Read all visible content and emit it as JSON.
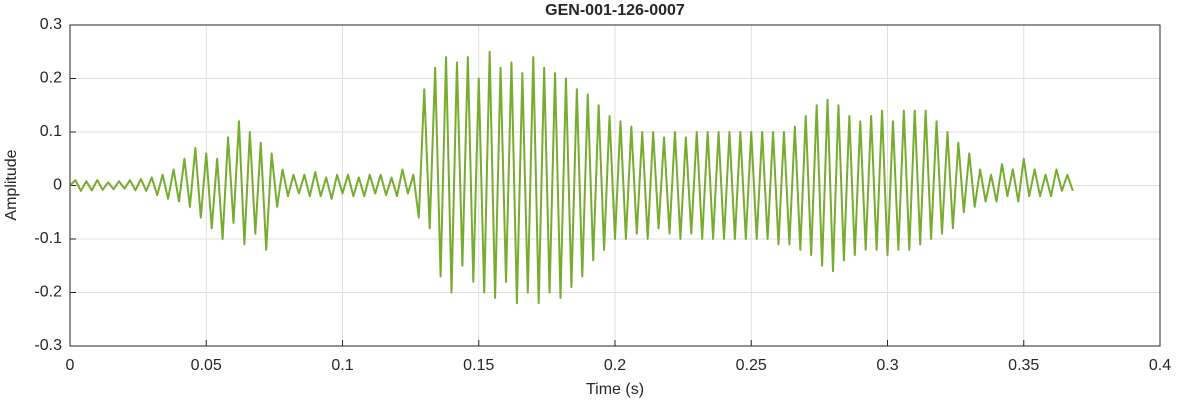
{
  "chart_data": {
    "type": "line",
    "title": "GEN-001-126-0007",
    "x_label": "Time (s)",
    "y_label": "Amplitude",
    "xlim": [
      0,
      0.4
    ],
    "ylim": [
      -0.3,
      0.3
    ],
    "xticks": [
      0,
      0.05,
      0.1,
      0.15,
      0.2,
      0.25,
      0.3,
      0.35,
      0.4
    ],
    "yticks": [
      -0.3,
      -0.2,
      -0.1,
      0,
      0.1,
      0.2,
      0.3
    ],
    "grid": true,
    "x": [
      0,
      0.002,
      0.004,
      0.006,
      0.008,
      0.01,
      0.012,
      0.014,
      0.016,
      0.018,
      0.02,
      0.022,
      0.024,
      0.026,
      0.028,
      0.03,
      0.032,
      0.034,
      0.036,
      0.038,
      0.04,
      0.042,
      0.044,
      0.046,
      0.048,
      0.05,
      0.052,
      0.054,
      0.056,
      0.058,
      0.06,
      0.062,
      0.064,
      0.066,
      0.068,
      0.07,
      0.072,
      0.074,
      0.076,
      0.078,
      0.08,
      0.082,
      0.084,
      0.086,
      0.088,
      0.09,
      0.092,
      0.094,
      0.096,
      0.098,
      0.1,
      0.102,
      0.104,
      0.106,
      0.108,
      0.11,
      0.112,
      0.114,
      0.116,
      0.118,
      0.12,
      0.122,
      0.124,
      0.126,
      0.128,
      0.13,
      0.132,
      0.134,
      0.136,
      0.138,
      0.14,
      0.142,
      0.144,
      0.146,
      0.148,
      0.15,
      0.152,
      0.154,
      0.156,
      0.158,
      0.16,
      0.162,
      0.164,
      0.166,
      0.168,
      0.17,
      0.172,
      0.174,
      0.176,
      0.178,
      0.18,
      0.182,
      0.184,
      0.186,
      0.188,
      0.19,
      0.192,
      0.194,
      0.196,
      0.198,
      0.2,
      0.202,
      0.204,
      0.206,
      0.208,
      0.21,
      0.212,
      0.214,
      0.216,
      0.218,
      0.22,
      0.222,
      0.224,
      0.226,
      0.228,
      0.23,
      0.232,
      0.234,
      0.236,
      0.238,
      0.24,
      0.242,
      0.244,
      0.246,
      0.248,
      0.25,
      0.252,
      0.254,
      0.256,
      0.258,
      0.26,
      0.262,
      0.264,
      0.266,
      0.268,
      0.27,
      0.272,
      0.274,
      0.276,
      0.278,
      0.28,
      0.282,
      0.284,
      0.286,
      0.288,
      0.29,
      0.292,
      0.294,
      0.296,
      0.298,
      0.3,
      0.302,
      0.304,
      0.306,
      0.308,
      0.31,
      0.312,
      0.314,
      0.316,
      0.318,
      0.32,
      0.322,
      0.324,
      0.326,
      0.328,
      0.33,
      0.332,
      0.334,
      0.336,
      0.338,
      0.34,
      0.342,
      0.344,
      0.346,
      0.348,
      0.35,
      0.352,
      0.354,
      0.356,
      0.358,
      0.36,
      0.362,
      0.364,
      0.366,
      0.368
    ],
    "series": [
      {
        "color": "#77ac30",
        "values": [
          0,
          0.01,
          -0.01,
          0.008,
          -0.009,
          0.01,
          -0.008,
          0.006,
          -0.007,
          0.008,
          -0.006,
          0.01,
          -0.009,
          0.012,
          -0.01,
          0.015,
          -0.018,
          0.02,
          -0.025,
          0.03,
          -0.03,
          0.05,
          -0.04,
          0.07,
          -0.06,
          0.06,
          -0.08,
          0.05,
          -0.1,
          0.09,
          -0.07,
          0.12,
          -0.11,
          0.1,
          -0.09,
          0.08,
          -0.12,
          0.06,
          -0.04,
          0.03,
          -0.02,
          0.02,
          -0.015,
          0.02,
          -0.02,
          0.025,
          -0.02,
          0.015,
          -0.025,
          0.02,
          -0.015,
          0.02,
          -0.02,
          0.015,
          -0.02,
          0.02,
          -0.015,
          0.02,
          -0.018,
          0.015,
          -0.02,
          0.03,
          -0.015,
          0.02,
          -0.06,
          0.18,
          -0.08,
          0.22,
          -0.17,
          0.24,
          -0.2,
          0.23,
          -0.15,
          0.24,
          -0.18,
          0.2,
          -0.2,
          0.25,
          -0.21,
          0.22,
          -0.18,
          0.23,
          -0.22,
          0.21,
          -0.2,
          0.24,
          -0.22,
          0.22,
          -0.2,
          0.21,
          -0.21,
          0.2,
          -0.19,
          0.18,
          -0.17,
          0.17,
          -0.14,
          0.15,
          -0.12,
          0.13,
          -0.1,
          0.12,
          -0.1,
          0.11,
          -0.09,
          0.1,
          -0.1,
          0.1,
          -0.08,
          0.09,
          -0.09,
          0.1,
          -0.1,
          0.09,
          -0.09,
          0.1,
          -0.1,
          0.1,
          -0.1,
          0.1,
          -0.1,
          0.1,
          -0.1,
          0.1,
          -0.1,
          0.1,
          -0.1,
          0.1,
          -0.1,
          0.1,
          -0.11,
          0.1,
          -0.11,
          0.11,
          -0.12,
          0.13,
          -0.13,
          0.15,
          -0.15,
          0.16,
          -0.16,
          0.15,
          -0.14,
          0.13,
          -0.13,
          0.12,
          -0.12,
          0.13,
          -0.12,
          0.14,
          -0.13,
          0.12,
          -0.12,
          0.14,
          -0.12,
          0.14,
          -0.11,
          0.14,
          -0.1,
          0.12,
          -0.09,
          0.1,
          -0.08,
          0.08,
          -0.05,
          0.06,
          -0.04,
          0.03,
          -0.03,
          0.02,
          -0.03,
          0.04,
          -0.02,
          0.03,
          -0.03,
          0.05,
          -0.02,
          0.03,
          -0.02,
          0.02,
          -0.02,
          0.03,
          -0.01,
          0.02,
          -0.01
        ]
      }
    ]
  }
}
